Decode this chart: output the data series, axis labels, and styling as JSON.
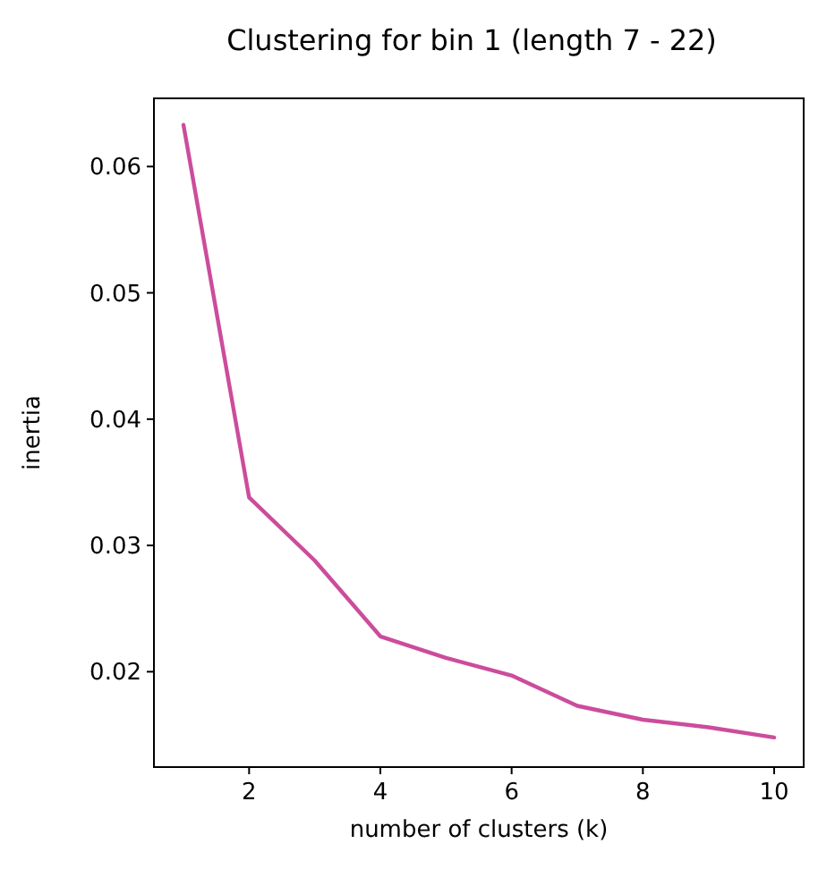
{
  "chart_data": {
    "type": "line",
    "title": "Clustering for bin 1 (length 7 - 22)",
    "xlabel": "number of clusters (k)",
    "ylabel": "inertia",
    "x": [
      1,
      2,
      3,
      4,
      5,
      6,
      7,
      8,
      9,
      10
    ],
    "series": [
      {
        "color": "#cc4c9c",
        "values": [
          0.0633,
          0.0338,
          0.0288,
          0.0228,
          0.0211,
          0.0197,
          0.0173,
          0.0162,
          0.0156,
          0.0148
        ]
      }
    ],
    "xlim": [
      0.55,
      10.45
    ],
    "ylim": [
      0.01245,
      0.0654
    ],
    "xticks": [
      2,
      4,
      6,
      8,
      10
    ],
    "yticks": [
      0.02,
      0.03,
      0.04,
      0.05,
      0.06
    ],
    "grid": false,
    "marker": "none",
    "line_style": "solid"
  }
}
